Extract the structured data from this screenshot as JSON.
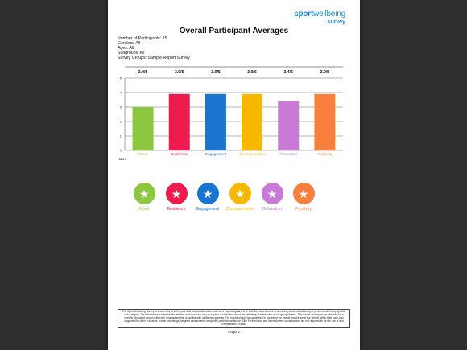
{
  "logo": {
    "line1_a": "sport",
    "line1_b": "wellbeing",
    "line2": "survey"
  },
  "report": {
    "title": "Overall Participant Averages",
    "meta": [
      "Number of Participants: 15",
      "Genders: All",
      "Ages: All",
      "Subgroups: All",
      "Survey Groups: Sample Report Survey"
    ],
    "notes_label": "Notes",
    "disclaimer": "The Sport Wellbeing Survey is a summary of self-report data and should not be used as a psychological test or definitive assessment or screening of overall wellbeing or performance in any specific sub-category. The information is intended for athletes and sport use only as a guide or indication about the wellbeing of individuals or sub-groups/teams. The results and report are intended for a specific dedicated person within the organisation that is familiar with wellbeing concepts. The results should be considered in context of the overall experience of the athlete within their sport and supported by other indicators, further knowledge, targeted assessments or specific professional advice. Elite Performance and its employees or contractors are not responsible for the use of and interpretation of data.",
    "page_label": "Page 5"
  },
  "chart_data": {
    "type": "bar",
    "categories": [
      "Mood",
      "Resilience",
      "Engagement",
      "Communication",
      "Relaxation",
      "Positivity"
    ],
    "values": [
      3.0,
      3.9,
      3.9,
      3.9,
      3.4,
      3.9
    ],
    "value_labels": [
      "3.0/5",
      "3.9/5",
      "3.9/5",
      "3.9/5",
      "3.4/5",
      "3.9/5"
    ],
    "colors": [
      "#8dc63f",
      "#ee1c4e",
      "#1b75d0",
      "#f6b800",
      "#c87ad6",
      "#f97f3c"
    ],
    "ylim": [
      0,
      5
    ],
    "yticks": [
      "0",
      "1",
      "2",
      "3",
      "4",
      "5"
    ],
    "grid": true
  },
  "icons": [
    {
      "label": "Mood",
      "icon": "star-icon",
      "color": "#8dc63f"
    },
    {
      "label": "Resilience",
      "icon": "star-icon",
      "color": "#ee1c4e"
    },
    {
      "label": "Engagement",
      "icon": "star-icon",
      "color": "#1b75d0"
    },
    {
      "label": "Communication",
      "icon": "star-icon",
      "color": "#f6b800"
    },
    {
      "label": "Relaxation",
      "icon": "star-icon",
      "color": "#c87ad6"
    },
    {
      "label": "Positivity",
      "icon": "star-icon",
      "color": "#f97f3c"
    }
  ]
}
